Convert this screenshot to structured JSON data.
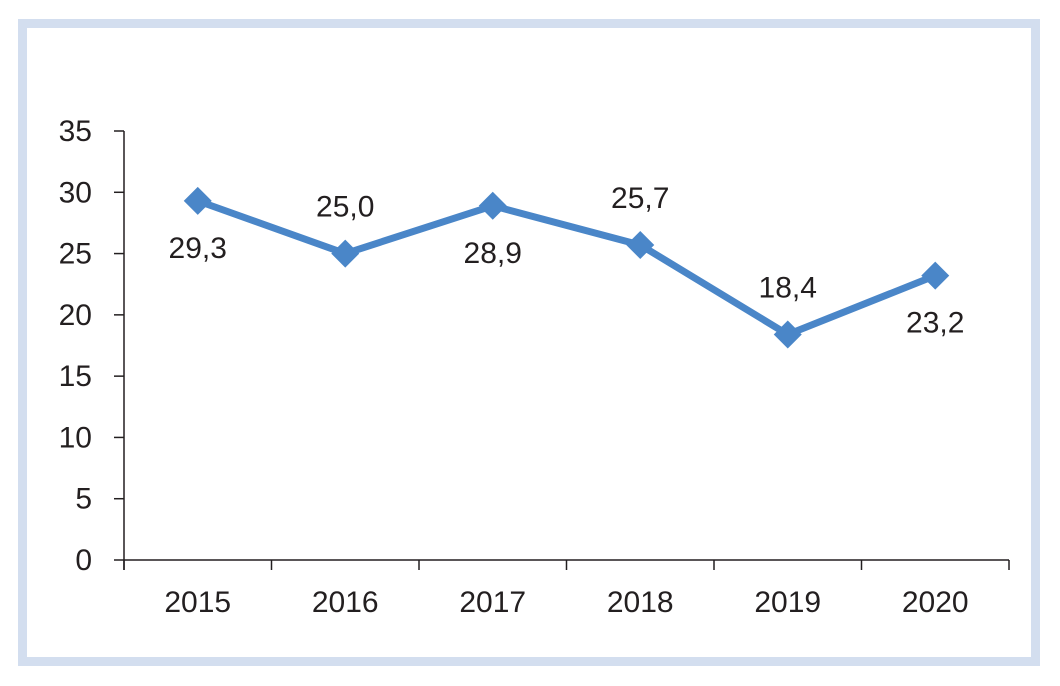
{
  "chart_data": {
    "type": "line",
    "categories": [
      "2015",
      "2016",
      "2017",
      "2018",
      "2019",
      "2020"
    ],
    "series": [
      {
        "values": [
          29.3,
          25.0,
          28.9,
          25.7,
          18.4,
          23.2
        ],
        "value_labels": [
          "29,3",
          "25,0",
          "28,9",
          "25,7",
          "18,4",
          "23,2"
        ],
        "label_positions": [
          "below",
          "above",
          "below",
          "above",
          "above",
          "below"
        ]
      }
    ],
    "ylim": [
      0,
      35
    ],
    "yticks": [
      0,
      5,
      10,
      15,
      20,
      25,
      30,
      35
    ],
    "grid": false,
    "legend": "none",
    "marker": "diamond",
    "colors": {
      "line": "#4a86c8",
      "axis": "#231f20",
      "text": "#231f20",
      "frame": "#d3deef"
    }
  }
}
